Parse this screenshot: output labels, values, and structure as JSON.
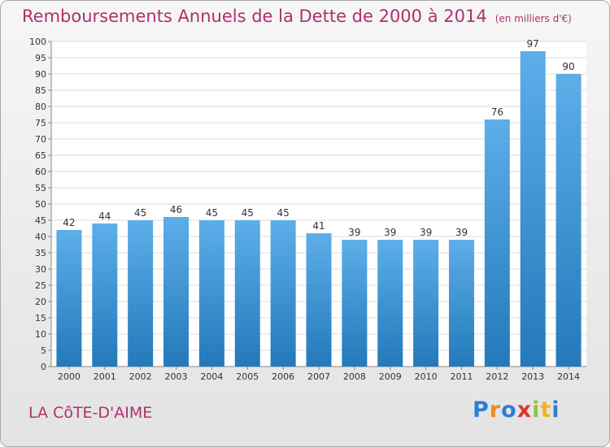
{
  "title": "Remboursements Annuels de la Dette de 2000 à 2014",
  "subtitle": "(en milliers d'€)",
  "place": "LA CôTE-D'AIME",
  "brand": {
    "letters": [
      "P",
      "r",
      "o",
      "x",
      "i",
      "t",
      "i"
    ],
    "colors": [
      "#2f7fd1",
      "#f08a1f",
      "#2f7fd1",
      "#e2342f",
      "#8cc63f",
      "#f0b51f",
      "#2f7fd1"
    ]
  },
  "colors": {
    "bar_top": "#5daee9",
    "bar_bottom": "#2379ba",
    "text_accent": "#b0306e"
  },
  "chart_data": {
    "type": "bar",
    "categories": [
      "2000",
      "2001",
      "2002",
      "2003",
      "2004",
      "2005",
      "2006",
      "2007",
      "2008",
      "2009",
      "2010",
      "2011",
      "2012",
      "2013",
      "2014"
    ],
    "values": [
      42,
      44,
      45,
      46,
      45,
      45,
      45,
      41,
      39,
      39,
      39,
      39,
      76,
      97,
      90
    ],
    "title": "Remboursements Annuels de la Dette de 2000 à 2014",
    "xlabel": "",
    "ylabel": "",
    "ylim": [
      0,
      100
    ],
    "yticks": [
      0,
      5,
      10,
      15,
      20,
      25,
      30,
      35,
      40,
      45,
      50,
      55,
      60,
      65,
      70,
      75,
      80,
      85,
      90,
      95,
      100
    ],
    "grid": true
  }
}
